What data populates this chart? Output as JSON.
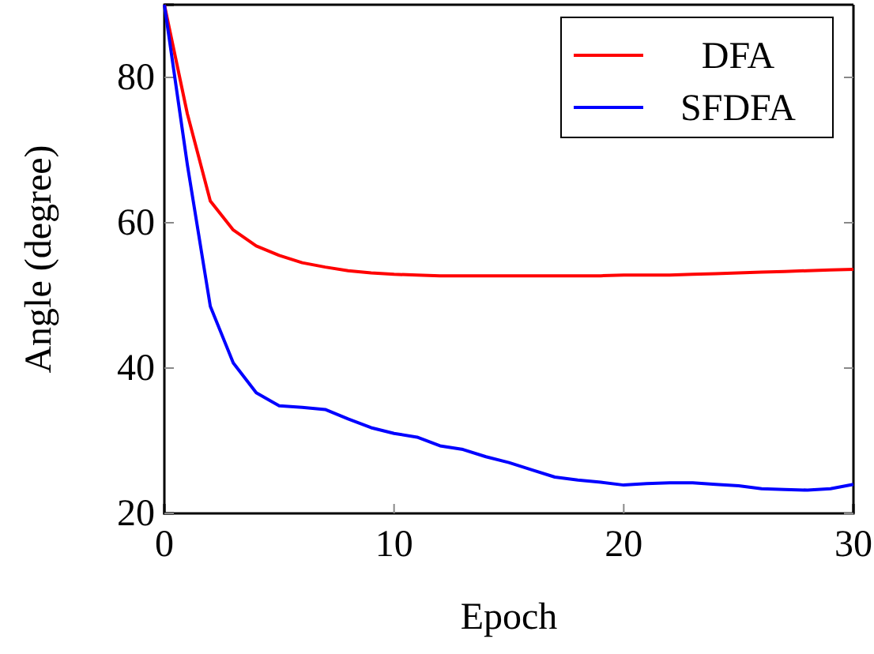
{
  "chart_data": {
    "type": "line",
    "xlabel": "Epoch",
    "ylabel": "Angle (degree)",
    "x": [
      0,
      1,
      2,
      3,
      4,
      5,
      6,
      7,
      8,
      9,
      10,
      11,
      12,
      13,
      14,
      15,
      16,
      17,
      18,
      19,
      20,
      21,
      22,
      23,
      24,
      25,
      26,
      27,
      28,
      29,
      30
    ],
    "series": [
      {
        "name": "DFA",
        "color": "#ff0000",
        "values": [
          90,
          75,
          63,
          59,
          56.8,
          55.5,
          54.5,
          53.9,
          53.4,
          53.1,
          52.9,
          52.8,
          52.7,
          52.7,
          52.7,
          52.7,
          52.7,
          52.7,
          52.7,
          52.7,
          52.8,
          52.8,
          52.8,
          52.9,
          53,
          53.1,
          53.2,
          53.3,
          53.4,
          53.5,
          53.6
        ]
      },
      {
        "name": "SFDFA",
        "color": "#0000ff",
        "values": [
          90,
          68,
          48.5,
          40.7,
          36.6,
          34.8,
          34.6,
          34.3,
          33,
          31.8,
          31,
          30.5,
          29.3,
          28.8,
          27.8,
          27,
          26,
          25,
          24.6,
          24.3,
          23.9,
          24.1,
          24.2,
          24.2,
          24,
          23.8,
          23.4,
          23.3,
          23.2,
          23.4,
          24
        ]
      }
    ],
    "xlim": [
      0,
      30
    ],
    "ylim": [
      20,
      90
    ],
    "xticks": [
      0,
      10,
      20,
      30
    ],
    "yticks": [
      20,
      40,
      60,
      80
    ],
    "legend": "top right",
    "marker": "none",
    "line_style": "solid",
    "grid": false
  }
}
